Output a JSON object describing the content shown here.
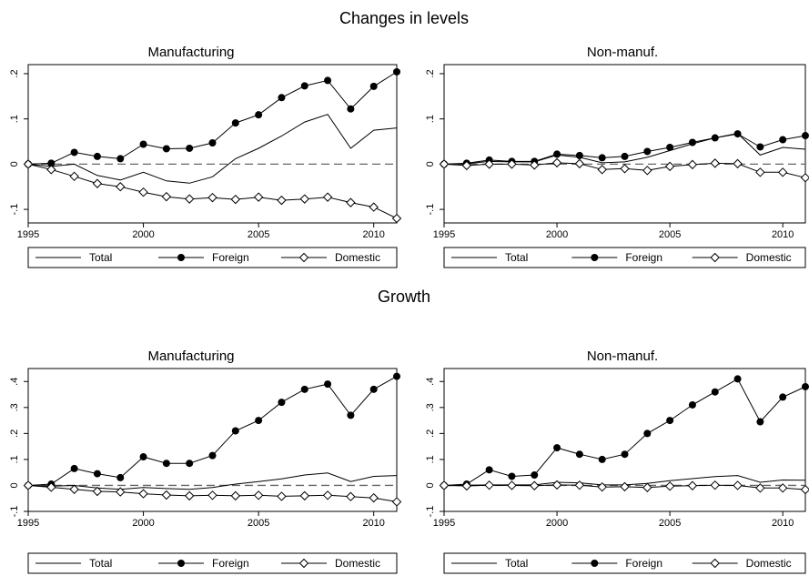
{
  "figure": {
    "sections": [
      {
        "title": "Changes in levels"
      },
      {
        "title": "Growth"
      }
    ]
  },
  "chart_data": [
    {
      "type": "line",
      "section": "Changes in levels",
      "title": "Manufacturing",
      "xlim": [
        1995,
        2011
      ],
      "ylim": [
        -0.13,
        0.22
      ],
      "x_ticks": [
        1995,
        2000,
        2005,
        2010
      ],
      "x_tick_labels": [
        "1995",
        "2000",
        "2005",
        "2010"
      ],
      "y_ticks": [
        -0.1,
        0,
        0.1,
        0.2
      ],
      "y_tick_labels": [
        "-.1",
        "0",
        ".1",
        ".2"
      ],
      "reference_line": 0,
      "grid": false,
      "legend_placement": "bottom",
      "x": [
        1995,
        1996,
        1997,
        1998,
        1999,
        2000,
        2001,
        2002,
        2003,
        2004,
        2005,
        2006,
        2007,
        2008,
        2009,
        2010,
        2011
      ],
      "series": [
        {
          "name": "Total",
          "marker": "none",
          "values": [
            0,
            -0.005,
            0,
            -0.025,
            -0.035,
            -0.018,
            -0.037,
            -0.042,
            -0.028,
            0.012,
            0.035,
            0.062,
            0.093,
            0.11,
            0.035,
            0.075,
            0.08
          ]
        },
        {
          "name": "Foreign",
          "marker": "filled-circle",
          "values": [
            0,
            0.002,
            0.026,
            0.017,
            0.012,
            0.044,
            0.034,
            0.035,
            0.047,
            0.091,
            0.109,
            0.147,
            0.173,
            0.185,
            0.122,
            0.172,
            0.204
          ]
        },
        {
          "name": "Domestic",
          "marker": "hollow-diamond",
          "values": [
            0,
            -0.012,
            -0.027,
            -0.043,
            -0.05,
            -0.062,
            -0.072,
            -0.077,
            -0.074,
            -0.078,
            -0.073,
            -0.08,
            -0.077,
            -0.073,
            -0.085,
            -0.095,
            -0.12
          ]
        }
      ]
    },
    {
      "type": "line",
      "section": "Changes in levels",
      "title": "Non-manuf.",
      "xlim": [
        1995,
        2011
      ],
      "ylim": [
        -0.13,
        0.22
      ],
      "x_ticks": [
        1995,
        2000,
        2005,
        2010
      ],
      "x_tick_labels": [
        "1995",
        "2000",
        "2005",
        "2010"
      ],
      "y_ticks": [
        -0.1,
        0,
        0.1,
        0.2
      ],
      "y_tick_labels": [
        "-.1",
        "0",
        ".1",
        ".2"
      ],
      "reference_line": 0,
      "grid": false,
      "legend_placement": "bottom",
      "x": [
        1995,
        1996,
        1997,
        1998,
        1999,
        2000,
        2001,
        2002,
        2003,
        2004,
        2005,
        2006,
        2007,
        2008,
        2009,
        2010,
        2011
      ],
      "series": [
        {
          "name": "Total",
          "marker": "none",
          "values": [
            0,
            0.001,
            0.006,
            0.005,
            0.005,
            0.02,
            0.015,
            0.003,
            0.005,
            0.015,
            0.03,
            0.045,
            0.058,
            0.068,
            0.02,
            0.037,
            0.033
          ]
        },
        {
          "name": "Foreign",
          "marker": "filled-circle",
          "values": [
            0,
            0.002,
            0.009,
            0.006,
            0.006,
            0.022,
            0.019,
            0.014,
            0.017,
            0.028,
            0.037,
            0.048,
            0.058,
            0.067,
            0.038,
            0.054,
            0.063
          ]
        },
        {
          "name": "Domestic",
          "marker": "hollow-diamond",
          "values": [
            0,
            -0.003,
            0,
            0,
            -0.002,
            0.003,
            0.001,
            -0.012,
            -0.01,
            -0.014,
            -0.005,
            -0.001,
            0.002,
            0.001,
            -0.018,
            -0.018,
            -0.03
          ]
        }
      ]
    },
    {
      "type": "line",
      "section": "Growth",
      "title": "Manufacturing",
      "xlim": [
        1995,
        2011
      ],
      "ylim": [
        -0.1,
        0.45
      ],
      "x_ticks": [
        1995,
        2000,
        2005,
        2010
      ],
      "x_tick_labels": [
        "1995",
        "2000",
        "2005",
        "2010"
      ],
      "y_ticks": [
        -0.1,
        0,
        0.1,
        0.2,
        0.3,
        0.4
      ],
      "y_tick_labels": [
        "-.1",
        "0",
        ".1",
        ".2",
        ".3",
        ".4"
      ],
      "reference_line": 0,
      "grid": false,
      "legend_placement": "bottom",
      "x": [
        1995,
        1996,
        1997,
        1998,
        1999,
        2000,
        2001,
        2002,
        2003,
        2004,
        2005,
        2006,
        2007,
        2008,
        2009,
        2010,
        2011
      ],
      "series": [
        {
          "name": "Total",
          "marker": "none",
          "values": [
            0,
            -0.003,
            0,
            -0.01,
            -0.015,
            -0.008,
            -0.012,
            -0.015,
            -0.008,
            0.005,
            0.015,
            0.025,
            0.04,
            0.048,
            0.015,
            0.035,
            0.038
          ]
        },
        {
          "name": "Foreign",
          "marker": "filled-circle",
          "values": [
            0,
            0.005,
            0.065,
            0.045,
            0.03,
            0.11,
            0.085,
            0.085,
            0.115,
            0.21,
            0.25,
            0.32,
            0.37,
            0.39,
            0.27,
            0.37,
            0.42
          ]
        },
        {
          "name": "Domestic",
          "marker": "hollow-diamond",
          "values": [
            0,
            -0.007,
            -0.015,
            -0.023,
            -0.025,
            -0.032,
            -0.037,
            -0.04,
            -0.038,
            -0.04,
            -0.038,
            -0.042,
            -0.04,
            -0.038,
            -0.043,
            -0.048,
            -0.063
          ]
        }
      ]
    },
    {
      "type": "line",
      "section": "Growth",
      "title": "Non-manuf.",
      "xlim": [
        1995,
        2011
      ],
      "ylim": [
        -0.1,
        0.45
      ],
      "x_ticks": [
        1995,
        2000,
        2005,
        2010
      ],
      "x_tick_labels": [
        "1995",
        "2000",
        "2005",
        "2010"
      ],
      "y_ticks": [
        -0.1,
        0,
        0.1,
        0.2,
        0.3,
        0.4
      ],
      "y_tick_labels": [
        "-.1",
        "0",
        ".1",
        ".2",
        ".3",
        ".4"
      ],
      "reference_line": 0,
      "grid": false,
      "legend_placement": "bottom",
      "x": [
        1995,
        1996,
        1997,
        1998,
        1999,
        2000,
        2001,
        2002,
        2003,
        2004,
        2005,
        2006,
        2007,
        2008,
        2009,
        2010,
        2011
      ],
      "series": [
        {
          "name": "Total",
          "marker": "none",
          "values": [
            0,
            0.001,
            0.002,
            0.002,
            0.002,
            0.012,
            0.01,
            0.002,
            0.002,
            0.008,
            0.018,
            0.026,
            0.034,
            0.038,
            0.012,
            0.021,
            0.02
          ]
        },
        {
          "name": "Foreign",
          "marker": "filled-circle",
          "values": [
            0,
            0.005,
            0.06,
            0.035,
            0.04,
            0.145,
            0.12,
            0.1,
            0.12,
            0.2,
            0.25,
            0.31,
            0.36,
            0.41,
            0.245,
            0.34,
            0.38
          ]
        },
        {
          "name": "Domestic",
          "marker": "hollow-diamond",
          "values": [
            0,
            -0.002,
            0.001,
            0,
            -0.001,
            0.002,
            0.001,
            -0.006,
            -0.005,
            -0.008,
            -0.003,
            -0.001,
            0.001,
            0,
            -0.01,
            -0.01,
            -0.016
          ]
        }
      ]
    }
  ]
}
